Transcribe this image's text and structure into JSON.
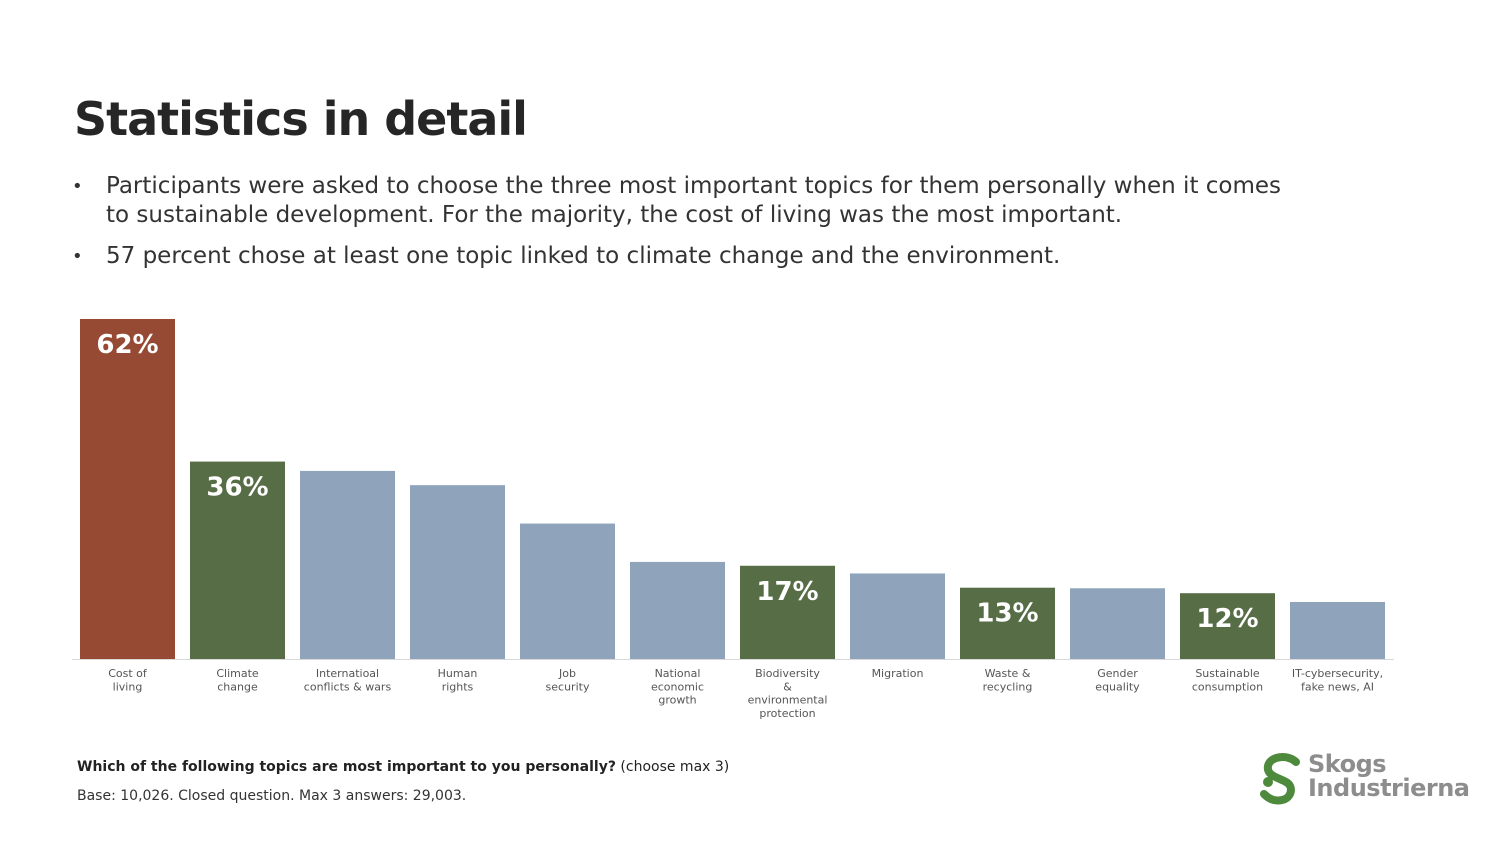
{
  "slide": {
    "title": "Statistics in detail",
    "bullets": [
      "Participants were asked to choose the three most important topics for them personally when it comes to sustainable development. For the majority, the cost of living was the most important.",
      "57 percent chose at least one topic linked to climate change and the environment."
    ],
    "bullet_symbol": "•",
    "question": "Which of the following topics are most important to you personally?",
    "question_note": "(choose max 3)",
    "base": "Base: 10,026. Closed question. Max 3 answers: 29,003.",
    "logo": {
      "line1": "Skogs",
      "line2": "Industrierna",
      "color": "#4d8a3c"
    }
  },
  "chart_data": {
    "type": "bar",
    "categories": [
      [
        "Cost of",
        "living"
      ],
      [
        "Climate",
        "change"
      ],
      [
        "Internatioal",
        "conflicts & wars"
      ],
      [
        "Human",
        "rights"
      ],
      [
        "Job",
        "security"
      ],
      [
        "National",
        "economic",
        "growth"
      ],
      [
        "Biodiversity",
        "&",
        "environmental",
        "protection"
      ],
      [
        "Migration"
      ],
      [
        "Waste &",
        "recycling"
      ],
      [
        "Gender",
        "equality"
      ],
      [
        "Sustainable",
        "consumption"
      ],
      [
        "IT-cybersecurity,",
        "fake news, AI"
      ]
    ],
    "values": [
      62,
      36,
      34.3,
      31.7,
      24.7,
      17.7,
      17,
      15.6,
      13,
      12.9,
      12,
      10.4
    ],
    "data_labels": [
      "62%",
      "36%",
      "",
      "",
      "",
      "",
      "17%",
      "",
      "13%",
      "",
      "12%",
      ""
    ],
    "colors": [
      "#974a33",
      "#576d46",
      "#8fa4bb",
      "#8fa4bb",
      "#8fa4bb",
      "#8fa4bb",
      "#576d46",
      "#8fa4bb",
      "#576d46",
      "#8fa4bb",
      "#576d46",
      "#8fa4bb"
    ],
    "ylim": [
      0,
      62
    ],
    "grid": false,
    "title": "",
    "xlabel": "",
    "ylabel": ""
  }
}
